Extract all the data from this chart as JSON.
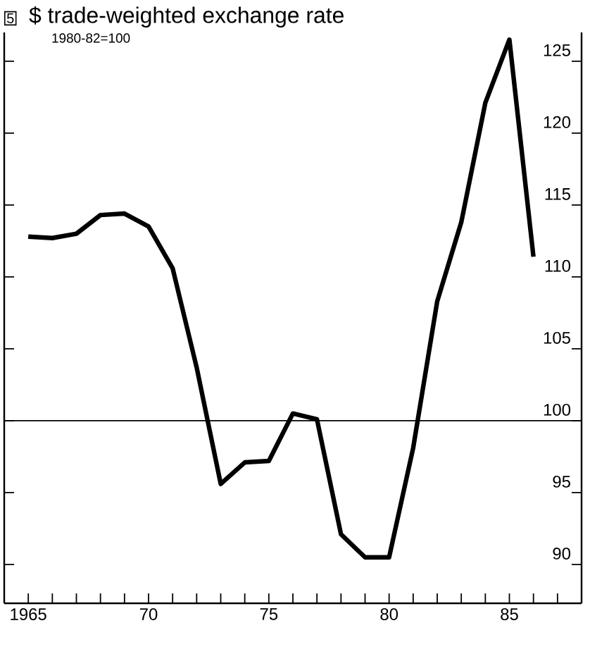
{
  "chart_data": {
    "type": "line",
    "title": "$ trade-weighted exchange rate",
    "subtitle": "1980-82=100",
    "annotations": [
      "5"
    ],
    "x": [
      1965,
      1966,
      1967,
      1968,
      1969,
      1970,
      1971,
      1972,
      1973,
      1974,
      1975,
      1976,
      1977,
      1978,
      1979,
      1980,
      1981,
      1982,
      1983,
      1984,
      1985,
      1986
    ],
    "series": [
      {
        "color": "#000000",
        "values": [
          112.8,
          112.7,
          113.0,
          114.3,
          114.4,
          113.5,
          110.6,
          103.7,
          95.6,
          97.1,
          97.2,
          100.5,
          100.1,
          92.1,
          90.5,
          90.5,
          98.1,
          108.3,
          113.8,
          122.1,
          126.5,
          111.4
        ]
      }
    ],
    "xlim": [
      1964,
      1988
    ],
    "ylim": [
      87.3,
      127
    ],
    "xticks": [
      1965,
      {
        "value": 1966,
        "label": null
      },
      {
        "value": 1967,
        "label": null
      },
      {
        "value": 1968,
        "label": null
      },
      {
        "value": 1969,
        "label": null
      },
      {
        "value": 1970,
        "label": "70"
      },
      {
        "value": 1971,
        "label": null
      },
      {
        "value": 1972,
        "label": null
      },
      {
        "value": 1973,
        "label": null
      },
      {
        "value": 1974,
        "label": null
      },
      {
        "value": 1975,
        "label": "75"
      },
      {
        "value": 1976,
        "label": null
      },
      {
        "value": 1977,
        "label": null
      },
      {
        "value": 1978,
        "label": null
      },
      {
        "value": 1979,
        "label": null
      },
      {
        "value": 1980,
        "label": "80"
      },
      {
        "value": 1981,
        "label": null
      },
      {
        "value": 1982,
        "label": null
      },
      {
        "value": 1983,
        "label": null
      },
      {
        "value": 1984,
        "label": null
      },
      {
        "value": 1985,
        "label": "85"
      },
      {
        "value": 1986,
        "label": null
      },
      {
        "value": 1987,
        "label": null
      }
    ],
    "yticks": [
      90,
      95,
      100,
      105,
      110,
      115,
      120,
      125
    ],
    "ref_lines": [
      {
        "axis": "y",
        "value": 100,
        "color": "#000000"
      }
    ],
    "grid": false,
    "marker": "none",
    "line_style": "solid"
  }
}
